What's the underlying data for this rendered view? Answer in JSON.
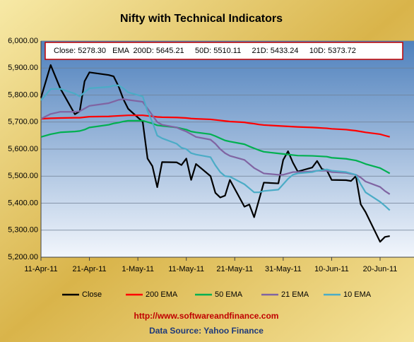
{
  "chart_data": {
    "type": "line",
    "title": "Nifty with Technical Indicators",
    "annotation": "Close: 5278.30   EMA  200D: 5645.21     50D: 5510.11     21D: 5433.24     10D: 5373.72",
    "footer_url": "http://www.softwareandfinance.com",
    "footer_source": "Data Source: Yahoo Finance",
    "x": [
      "2011-04-11",
      "2011-04-13",
      "2011-04-15",
      "2011-04-18",
      "2011-04-19",
      "2011-04-20",
      "2011-04-21",
      "2011-04-25",
      "2011-04-26",
      "2011-04-27",
      "2011-04-28",
      "2011-04-29",
      "2011-05-02",
      "2011-05-03",
      "2011-05-04",
      "2011-05-05",
      "2011-05-06",
      "2011-05-09",
      "2011-05-10",
      "2011-05-11",
      "2011-05-12",
      "2011-05-13",
      "2011-05-16",
      "2011-05-17",
      "2011-05-18",
      "2011-05-19",
      "2011-05-20",
      "2011-05-23",
      "2011-05-24",
      "2011-05-25",
      "2011-05-26",
      "2011-05-27",
      "2011-05-30",
      "2011-05-31",
      "2011-06-01",
      "2011-06-02",
      "2011-06-03",
      "2011-06-06",
      "2011-06-07",
      "2011-06-08",
      "2011-06-09",
      "2011-06-10",
      "2011-06-13",
      "2011-06-14",
      "2011-06-15",
      "2011-06-16",
      "2011-06-17",
      "2011-06-20",
      "2011-06-21",
      "2011-06-22"
    ],
    "series": [
      {
        "name": "Close",
        "color": "#000000",
        "values": [
          5790,
          5911,
          5824,
          5729,
          5740,
          5851,
          5884,
          5874,
          5869,
          5833,
          5785,
          5749,
          5701,
          5565,
          5537,
          5459,
          5552,
          5551,
          5541,
          5565,
          5486,
          5545,
          5500,
          5438,
          5421,
          5428,
          5486,
          5387,
          5395,
          5348,
          5412,
          5476,
          5473,
          5560,
          5592,
          5550,
          5517,
          5532,
          5556,
          5526,
          5522,
          5486,
          5485,
          5482,
          5500,
          5396,
          5367,
          5257,
          5275,
          5278.3
        ]
      },
      {
        "name": "200 EMA",
        "color": "#ff0000",
        "values": [
          5712,
          5714,
          5715,
          5716,
          5716,
          5718,
          5720,
          5721,
          5722,
          5723,
          5724,
          5725,
          5725,
          5723,
          5721,
          5719,
          5718,
          5717,
          5716,
          5715,
          5713,
          5712,
          5710,
          5708,
          5706,
          5704,
          5702,
          5699,
          5696,
          5694,
          5691,
          5689,
          5686,
          5685,
          5684,
          5683,
          5682,
          5680,
          5679,
          5678,
          5677,
          5675,
          5672,
          5670,
          5668,
          5665,
          5662,
          5655,
          5650,
          5645.21
        ]
      },
      {
        "name": "50 EMA",
        "color": "#00b050",
        "values": [
          5645,
          5655,
          5662,
          5665,
          5667,
          5672,
          5680,
          5690,
          5695,
          5698,
          5702,
          5705,
          5705,
          5700,
          5695,
          5688,
          5686,
          5680,
          5676,
          5672,
          5665,
          5662,
          5655,
          5648,
          5640,
          5632,
          5628,
          5618,
          5610,
          5603,
          5596,
          5590,
          5584,
          5582,
          5580,
          5578,
          5576,
          5575,
          5574,
          5573,
          5572,
          5568,
          5564,
          5561,
          5558,
          5552,
          5545,
          5530,
          5520,
          5510.11
        ]
      },
      {
        "name": "21 EMA",
        "color": "#8064a2",
        "values": [
          5712,
          5730,
          5738,
          5738,
          5740,
          5750,
          5760,
          5770,
          5776,
          5782,
          5785,
          5782,
          5775,
          5750,
          5725,
          5700,
          5690,
          5680,
          5672,
          5665,
          5655,
          5645,
          5635,
          5620,
          5600,
          5585,
          5575,
          5560,
          5545,
          5530,
          5520,
          5510,
          5505,
          5505,
          5510,
          5515,
          5515,
          5517,
          5520,
          5520,
          5520,
          5515,
          5512,
          5508,
          5505,
          5495,
          5480,
          5460,
          5445,
          5433.24
        ]
      },
      {
        "name": "10 EMA",
        "color": "#4bacc6",
        "values": [
          5780,
          5822,
          5823,
          5805,
          5795,
          5810,
          5825,
          5830,
          5835,
          5836,
          5825,
          5810,
          5795,
          5740,
          5700,
          5650,
          5640,
          5620,
          5605,
          5600,
          5585,
          5580,
          5570,
          5540,
          5515,
          5500,
          5498,
          5470,
          5455,
          5440,
          5440,
          5445,
          5450,
          5470,
          5490,
          5505,
          5510,
          5515,
          5520,
          5522,
          5525,
          5520,
          5515,
          5510,
          5505,
          5470,
          5440,
          5405,
          5390,
          5373.72
        ]
      }
    ],
    "xlim": [
      "2011-04-11",
      "2011-06-27"
    ],
    "xticks": [
      {
        "value": "2011-04-11",
        "label": "11-Apr-11"
      },
      {
        "value": "2011-04-21",
        "label": "21-Apr-11"
      },
      {
        "value": "2011-05-01",
        "label": "1-May-11"
      },
      {
        "value": "2011-05-11",
        "label": "11-May-11"
      },
      {
        "value": "2011-05-21",
        "label": "21-May-11"
      },
      {
        "value": "2011-05-31",
        "label": "31-May-11"
      },
      {
        "value": "2011-06-10",
        "label": "10-Jun-11"
      },
      {
        "value": "2011-06-20",
        "label": "20-Jun-11"
      }
    ],
    "ylim": [
      5200,
      6000
    ],
    "yticks": [
      {
        "value": 5200,
        "label": "5,200.00"
      },
      {
        "value": 5300,
        "label": "5,300.00"
      },
      {
        "value": 5400,
        "label": "5,400.00"
      },
      {
        "value": 5500,
        "label": "5,500.00"
      },
      {
        "value": 5600,
        "label": "5,600.00"
      },
      {
        "value": 5700,
        "label": "5,700.00"
      },
      {
        "value": 5800,
        "label": "5,800.00"
      },
      {
        "value": 5900,
        "label": "5,900.00"
      },
      {
        "value": 6000,
        "label": "6,000.00"
      }
    ],
    "grid": true,
    "legend": "bottom"
  }
}
